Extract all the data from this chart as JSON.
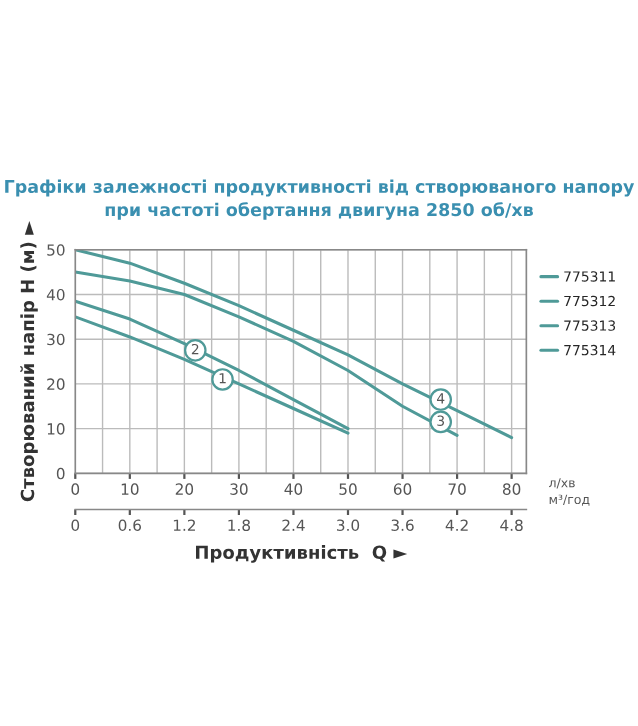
{
  "chart_data": {
    "type": "line",
    "title": "Графіки залежності продуктивності від створюваного напору\nпри частоті обертання двигуна 2850 об/хв",
    "xlabel": "Продуктивність  Q ►",
    "ylabel": "Створюваний напір H (м) ►",
    "x": [
      0,
      10,
      20,
      30,
      40,
      50,
      60,
      70,
      80
    ],
    "series": [
      {
        "name": "775311",
        "color": "#4f9a98",
        "values": [
          35,
          30.5,
          25.5,
          20,
          14.5,
          9,
          null,
          null,
          null
        ]
      },
      {
        "name": "775312",
        "color": "#4f9a98",
        "values": [
          38.5,
          34.5,
          29,
          23,
          16.5,
          10,
          null,
          null,
          null
        ]
      },
      {
        "name": "775313",
        "color": "#4f9a98",
        "values": [
          45,
          43,
          40,
          35,
          29.5,
          23,
          15,
          8.5,
          null
        ]
      },
      {
        "name": "775314",
        "color": "#4f9a98",
        "values": [
          50,
          47,
          42.5,
          37.5,
          32,
          26.5,
          20,
          14,
          8
        ]
      }
    ],
    "xlim": [
      0,
      82.7
    ],
    "xticks": [
      0,
      10,
      20,
      30,
      40,
      50,
      60,
      70,
      80
    ],
    "ylim": [
      0,
      50
    ],
    "yticks": [
      0,
      10,
      20,
      30,
      40,
      50
    ],
    "x2lim": [
      0,
      4.962
    ],
    "x2ticks": [
      0,
      0.6,
      1.2,
      1.8,
      2.4,
      {
        "value": 3,
        "label": "3.0"
      },
      3.6,
      4.2,
      4.8
    ],
    "x2label": "м³/год",
    "annotations": [
      {
        "text": "1",
        "x": 27,
        "y": 21
      },
      {
        "text": "2",
        "x": 22,
        "y": 27.5
      },
      {
        "text": "3",
        "x": 67,
        "y": 11.5
      },
      {
        "text": "4",
        "x": 67,
        "y": 16.5
      },
      "л/хв"
    ],
    "grid": true,
    "legend": "right"
  }
}
